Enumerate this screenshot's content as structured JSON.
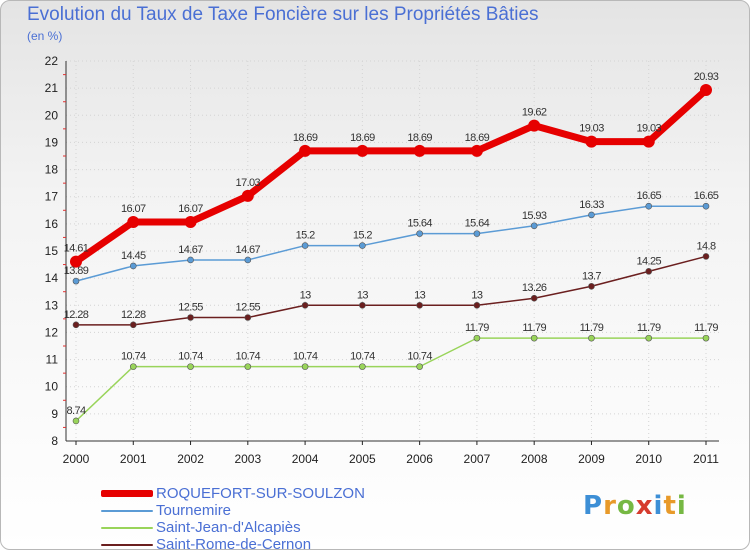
{
  "title": "Evolution du Taux de Taxe Foncière sur les Propriétés Bâties",
  "subtitle": "(en %)",
  "logo_text": "Proxiti",
  "chart_data": {
    "type": "line",
    "title": "Evolution du Taux de Taxe Foncière sur les Propriétés Bâties",
    "ylabel": "(en %)",
    "xlabel": "",
    "x": [
      "2000",
      "2001",
      "2002",
      "2003",
      "2004",
      "2005",
      "2006",
      "2007",
      "2008",
      "2009",
      "2010",
      "2011"
    ],
    "ylim": [
      8,
      22
    ],
    "yticks": [
      8,
      9,
      10,
      11,
      12,
      13,
      14,
      15,
      16,
      17,
      18,
      19,
      20,
      21,
      22
    ],
    "grid": true,
    "legend_position": "bottom-left",
    "series": [
      {
        "name": "ROQUEFORT-SUR-SOULZON",
        "color": "#e60000",
        "values": [
          14.61,
          16.07,
          16.07,
          17.03,
          18.69,
          18.69,
          18.69,
          18.69,
          19.62,
          19.03,
          19.03,
          20.93
        ],
        "labels": [
          "14.61",
          "16.07",
          "16.07",
          "17.03",
          "18.69",
          "18.69",
          "18.69",
          "18.69",
          "19.62",
          "19.03",
          "19.03",
          "20.93"
        ]
      },
      {
        "name": "Tournemire",
        "color": "#5b9bd5",
        "values": [
          13.89,
          14.45,
          14.67,
          14.67,
          15.2,
          15.2,
          15.64,
          15.64,
          15.93,
          16.33,
          16.65,
          16.65
        ],
        "labels": [
          "13.89",
          "14.45",
          "14.67",
          "14.67",
          "15.2",
          "15.2",
          "15.64",
          "15.64",
          "15.93",
          "16.33",
          "16.65",
          "16.65"
        ]
      },
      {
        "name": "Saint-Jean-d'Alcapiès",
        "color": "#99d45a",
        "values": [
          8.74,
          10.74,
          10.74,
          10.74,
          10.74,
          10.74,
          10.74,
          11.79,
          11.79,
          11.79,
          11.79,
          11.79
        ],
        "labels": [
          "8.74",
          "10.74",
          "10.74",
          "10.74",
          "10.74",
          "10.74",
          "10.74",
          "11.79",
          "11.79",
          "11.79",
          "11.79",
          "11.79"
        ]
      },
      {
        "name": "Saint-Rome-de-Cernon",
        "color": "#6b1f1f",
        "values": [
          12.28,
          12.28,
          12.55,
          12.55,
          13,
          13,
          13,
          13,
          13.26,
          13.7,
          14.25,
          14.8
        ],
        "labels": [
          "12.28",
          "12.28",
          "12.55",
          "12.55",
          "13",
          "13",
          "13",
          "13",
          "13.26",
          "13.7",
          "14.25",
          "14.8"
        ]
      }
    ]
  }
}
